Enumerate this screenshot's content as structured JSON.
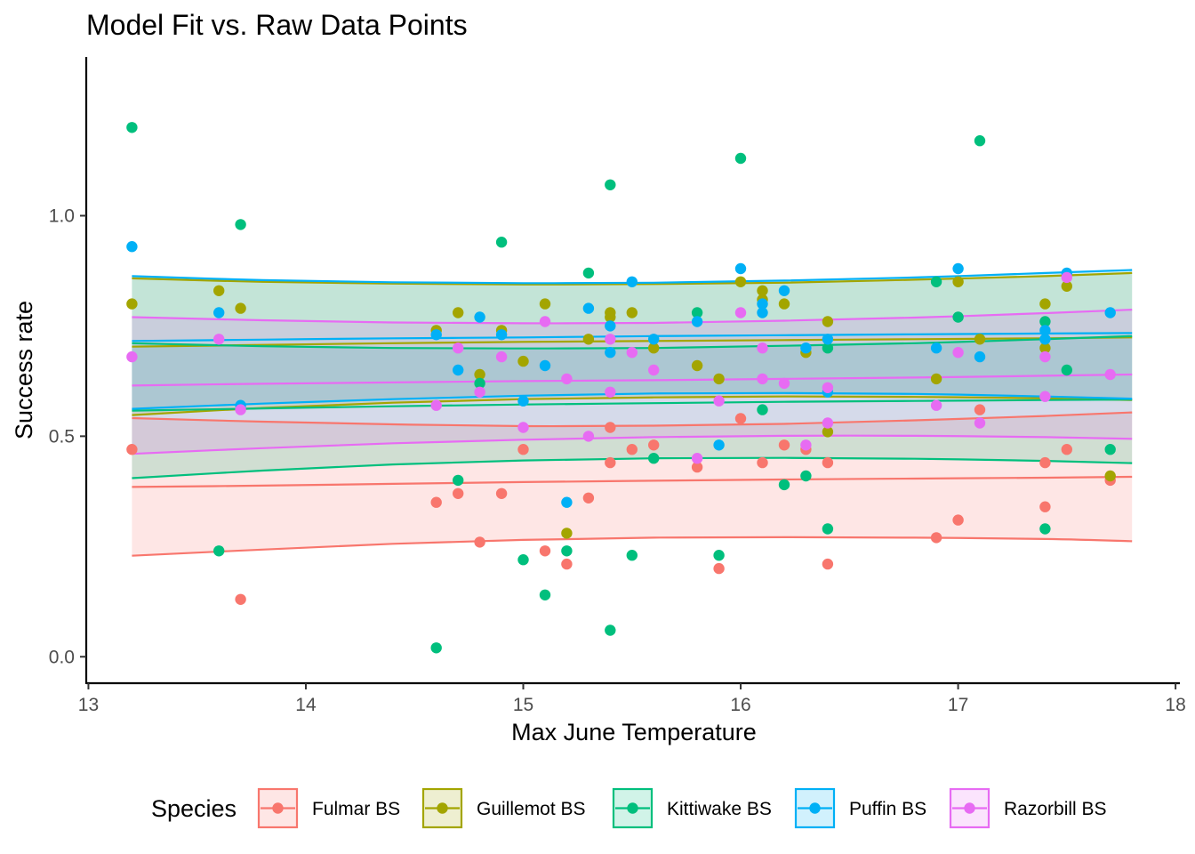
{
  "chart_data": {
    "type": "scatter",
    "title": "Model Fit vs. Raw Data Points",
    "xlabel": "Max June Temperature",
    "ylabel": "Success rate",
    "xlim": [
      12.99,
      18.02
    ],
    "ylim": [
      -0.06,
      1.36
    ],
    "x_ticks": [
      13,
      14,
      15,
      16,
      17,
      18
    ],
    "y_ticks": [
      0.0,
      0.5,
      1.0
    ],
    "x_tick_labels": [
      "13",
      "14",
      "15",
      "16",
      "17",
      "18"
    ],
    "y_tick_labels": [
      "0.0",
      "0.5",
      "1.0"
    ],
    "grid": false,
    "legend": {
      "title": "Species",
      "position": "bottom"
    },
    "fit_x": [
      13.2,
      13.8,
      14.4,
      15.0,
      15.6,
      16.2,
      16.8,
      17.4,
      17.8
    ],
    "series": [
      {
        "name": "Fulmar BS",
        "color": "#F8766D",
        "fit": [
          0.385,
          0.388,
          0.392,
          0.396,
          0.399,
          0.402,
          0.404,
          0.406,
          0.408
        ],
        "lower": [
          0.229,
          0.243,
          0.256,
          0.265,
          0.27,
          0.271,
          0.27,
          0.267,
          0.262
        ],
        "upper": [
          0.541,
          0.533,
          0.527,
          0.523,
          0.524,
          0.528,
          0.536,
          0.546,
          0.554
        ],
        "points": [
          [
            13.2,
            0.47
          ],
          [
            13.7,
            0.13
          ],
          [
            14.6,
            0.35
          ],
          [
            14.7,
            0.37
          ],
          [
            14.8,
            0.26
          ],
          [
            14.9,
            0.37
          ],
          [
            15.0,
            0.47
          ],
          [
            15.1,
            0.24
          ],
          [
            15.2,
            0.21
          ],
          [
            15.3,
            0.36
          ],
          [
            15.4,
            0.52
          ],
          [
            15.4,
            0.44
          ],
          [
            15.5,
            0.47
          ],
          [
            15.6,
            0.48
          ],
          [
            15.8,
            0.43
          ],
          [
            15.9,
            0.2
          ],
          [
            16.0,
            0.54
          ],
          [
            16.1,
            0.44
          ],
          [
            16.2,
            0.48
          ],
          [
            16.3,
            0.47
          ],
          [
            16.4,
            0.44
          ],
          [
            16.4,
            0.21
          ],
          [
            16.9,
            0.27
          ],
          [
            17.0,
            0.31
          ],
          [
            17.1,
            0.56
          ],
          [
            17.4,
            0.44
          ],
          [
            17.4,
            0.34
          ],
          [
            17.5,
            0.47
          ],
          [
            17.7,
            0.4
          ]
        ]
      },
      {
        "name": "Guillemot BS",
        "color": "#A3A500",
        "fit": [
          0.703,
          0.707,
          0.711,
          0.714,
          0.716,
          0.718,
          0.72,
          0.722,
          0.724
        ],
        "lower": [
          0.548,
          0.564,
          0.576,
          0.584,
          0.588,
          0.59,
          0.589,
          0.586,
          0.582
        ],
        "upper": [
          0.858,
          0.85,
          0.846,
          0.844,
          0.845,
          0.848,
          0.855,
          0.863,
          0.87
        ],
        "points": [
          [
            13.2,
            0.8
          ],
          [
            13.6,
            0.83
          ],
          [
            13.7,
            0.79
          ],
          [
            14.6,
            0.74
          ],
          [
            14.7,
            0.78
          ],
          [
            14.8,
            0.64
          ],
          [
            14.9,
            0.74
          ],
          [
            15.0,
            0.67
          ],
          [
            15.1,
            0.8
          ],
          [
            15.2,
            0.28
          ],
          [
            15.3,
            0.72
          ],
          [
            15.4,
            0.78
          ],
          [
            15.4,
            0.77
          ],
          [
            15.5,
            0.78
          ],
          [
            15.6,
            0.7
          ],
          [
            15.8,
            0.66
          ],
          [
            15.9,
            0.63
          ],
          [
            16.0,
            0.85
          ],
          [
            16.1,
            0.83
          ],
          [
            16.1,
            0.81
          ],
          [
            16.2,
            0.8
          ],
          [
            16.3,
            0.69
          ],
          [
            16.4,
            0.76
          ],
          [
            16.4,
            0.51
          ],
          [
            16.9,
            0.63
          ],
          [
            17.0,
            0.85
          ],
          [
            17.1,
            0.72
          ],
          [
            17.4,
            0.8
          ],
          [
            17.4,
            0.7
          ],
          [
            17.5,
            0.84
          ],
          [
            17.7,
            0.41
          ]
        ]
      },
      {
        "name": "Kittiwake BS",
        "color": "#00BF7D",
        "fit": [
          0.558,
          0.563,
          0.568,
          0.572,
          0.575,
          0.578,
          0.58,
          0.582,
          0.583
        ],
        "lower": [
          0.405,
          0.422,
          0.436,
          0.445,
          0.45,
          0.451,
          0.449,
          0.444,
          0.439
        ],
        "upper": [
          0.711,
          0.704,
          0.7,
          0.699,
          0.7,
          0.705,
          0.711,
          0.72,
          0.727
        ],
        "points": [
          [
            13.2,
            1.2
          ],
          [
            13.6,
            0.24
          ],
          [
            13.7,
            0.98
          ],
          [
            14.6,
            0.02
          ],
          [
            14.7,
            0.4
          ],
          [
            14.8,
            0.62
          ],
          [
            14.9,
            0.94
          ],
          [
            15.0,
            0.22
          ],
          [
            15.1,
            0.14
          ],
          [
            15.2,
            0.24
          ],
          [
            15.3,
            0.87
          ],
          [
            15.4,
            1.07
          ],
          [
            15.4,
            0.06
          ],
          [
            15.5,
            0.23
          ],
          [
            15.6,
            0.45
          ],
          [
            15.8,
            0.78
          ],
          [
            15.9,
            0.23
          ],
          [
            16.0,
            1.13
          ],
          [
            16.1,
            0.56
          ],
          [
            16.2,
            0.39
          ],
          [
            16.3,
            0.41
          ],
          [
            16.4,
            0.7
          ],
          [
            16.4,
            0.29
          ],
          [
            16.9,
            0.85
          ],
          [
            17.0,
            0.77
          ],
          [
            17.1,
            1.17
          ],
          [
            17.4,
            0.76
          ],
          [
            17.4,
            0.29
          ],
          [
            17.5,
            0.65
          ],
          [
            17.7,
            0.47
          ]
        ]
      },
      {
        "name": "Puffin BS",
        "color": "#00B0F6",
        "fit": [
          0.716,
          0.719,
          0.722,
          0.724,
          0.727,
          0.729,
          0.731,
          0.733,
          0.734
        ],
        "lower": [
          0.562,
          0.574,
          0.584,
          0.592,
          0.597,
          0.598,
          0.596,
          0.59,
          0.585
        ],
        "upper": [
          0.863,
          0.854,
          0.849,
          0.847,
          0.848,
          0.853,
          0.86,
          0.87,
          0.877
        ],
        "points": [
          [
            13.2,
            0.93
          ],
          [
            13.6,
            0.78
          ],
          [
            13.7,
            0.57
          ],
          [
            14.6,
            0.73
          ],
          [
            14.7,
            0.65
          ],
          [
            14.8,
            0.77
          ],
          [
            14.9,
            0.73
          ],
          [
            15.0,
            0.58
          ],
          [
            15.1,
            0.66
          ],
          [
            15.2,
            0.35
          ],
          [
            15.3,
            0.79
          ],
          [
            15.4,
            0.75
          ],
          [
            15.4,
            0.69
          ],
          [
            15.5,
            0.85
          ],
          [
            15.6,
            0.72
          ],
          [
            15.8,
            0.76
          ],
          [
            15.9,
            0.48
          ],
          [
            16.0,
            0.88
          ],
          [
            16.1,
            0.8
          ],
          [
            16.1,
            0.78
          ],
          [
            16.2,
            0.83
          ],
          [
            16.3,
            0.7
          ],
          [
            16.4,
            0.72
          ],
          [
            16.4,
            0.6
          ],
          [
            16.9,
            0.7
          ],
          [
            17.0,
            0.88
          ],
          [
            17.1,
            0.68
          ],
          [
            17.4,
            0.74
          ],
          [
            17.4,
            0.72
          ],
          [
            17.5,
            0.87
          ],
          [
            17.7,
            0.78
          ]
        ]
      },
      {
        "name": "Razorbill BS",
        "color": "#E76BF3",
        "fit": [
          0.615,
          0.619,
          0.622,
          0.625,
          0.627,
          0.63,
          0.633,
          0.637,
          0.64
        ],
        "lower": [
          0.46,
          0.473,
          0.484,
          0.492,
          0.498,
          0.501,
          0.501,
          0.498,
          0.494
        ],
        "upper": [
          0.77,
          0.763,
          0.758,
          0.756,
          0.757,
          0.762,
          0.769,
          0.779,
          0.787
        ],
        "points": [
          [
            13.2,
            0.68
          ],
          [
            13.6,
            0.72
          ],
          [
            13.7,
            0.56
          ],
          [
            14.6,
            0.57
          ],
          [
            14.7,
            0.7
          ],
          [
            14.8,
            0.6
          ],
          [
            14.9,
            0.68
          ],
          [
            15.0,
            0.52
          ],
          [
            15.1,
            0.76
          ],
          [
            15.2,
            0.63
          ],
          [
            15.3,
            0.5
          ],
          [
            15.4,
            0.72
          ],
          [
            15.4,
            0.6
          ],
          [
            15.5,
            0.69
          ],
          [
            15.6,
            0.65
          ],
          [
            15.8,
            0.45
          ],
          [
            15.9,
            0.58
          ],
          [
            16.0,
            0.78
          ],
          [
            16.1,
            0.7
          ],
          [
            16.1,
            0.63
          ],
          [
            16.2,
            0.62
          ],
          [
            16.3,
            0.48
          ],
          [
            16.4,
            0.61
          ],
          [
            16.4,
            0.53
          ],
          [
            16.9,
            0.57
          ],
          [
            17.0,
            0.69
          ],
          [
            17.1,
            0.53
          ],
          [
            17.4,
            0.68
          ],
          [
            17.4,
            0.59
          ],
          [
            17.5,
            0.86
          ],
          [
            17.7,
            0.64
          ]
        ]
      }
    ]
  }
}
